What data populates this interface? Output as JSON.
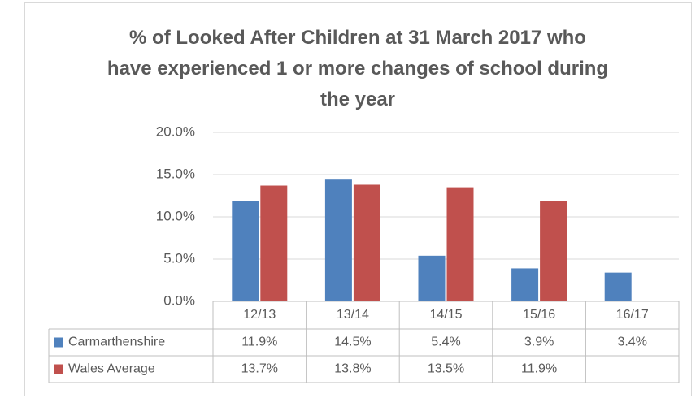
{
  "chart_data": {
    "type": "bar",
    "title": "% of Looked After Children at 31 March 2017 who have experienced 1 or more changes of school during the year",
    "categories": [
      "12/13",
      "13/14",
      "14/15",
      "15/16",
      "16/17"
    ],
    "series": [
      {
        "name": "Carmarthenshire",
        "color": "#4f81bd",
        "values": [
          11.9,
          14.5,
          5.4,
          3.9,
          3.4
        ],
        "value_labels": [
          "11.9%",
          "14.5%",
          "5.4%",
          "3.9%",
          "3.4%"
        ]
      },
      {
        "name": "Wales Average",
        "color": "#c0504d",
        "values": [
          13.7,
          13.8,
          13.5,
          11.9,
          null
        ],
        "value_labels": [
          "13.7%",
          "13.8%",
          "13.5%",
          "11.9%",
          null
        ]
      }
    ],
    "ylim": [
      0,
      20
    ],
    "yticks": [
      {
        "value": 0,
        "label": "0.0%"
      },
      {
        "value": 5,
        "label": "5.0%"
      },
      {
        "value": 10,
        "label": "10.0%"
      },
      {
        "value": 15,
        "label": "15.0%"
      },
      {
        "value": 20,
        "label": "20.0%"
      }
    ],
    "grid": true
  }
}
